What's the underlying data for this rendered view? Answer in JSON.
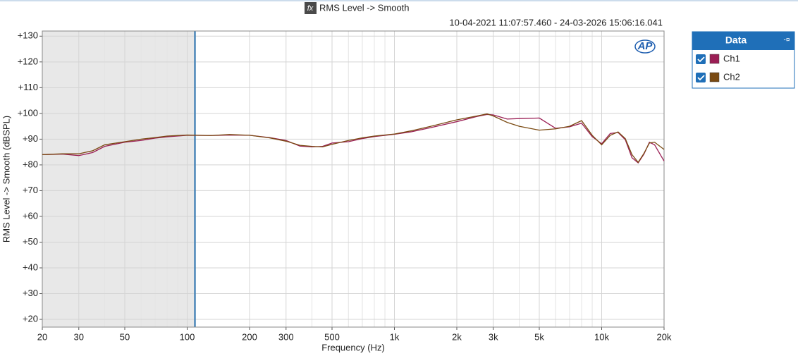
{
  "chart_data": {
    "type": "line",
    "title": "RMS Level -> Smooth",
    "subtitle": "10-04-2021 11:07:57.460 - 24-03-2026 15:06:16.041",
    "xlabel": "Frequency (Hz)",
    "ylabel": "RMS Level -> Smooth (dBSPL)",
    "logo": "AP",
    "legend_title": "Data",
    "xscale": "log",
    "grid": true,
    "xlim": [
      20,
      20000
    ],
    "ylim": [
      17,
      132
    ],
    "xticks": [
      20,
      30,
      50,
      100,
      200,
      300,
      500,
      {
        "value": 1000,
        "label": "1k"
      },
      {
        "value": 2000,
        "label": "2k"
      },
      {
        "value": 3000,
        "label": "3k"
      },
      {
        "value": 5000,
        "label": "5k"
      },
      {
        "value": 10000,
        "label": "10k"
      },
      {
        "value": 20000,
        "label": "20k"
      }
    ],
    "xminor_ticks": [
      40,
      60,
      70,
      80,
      90,
      400,
      600,
      700,
      800,
      900,
      4000,
      6000,
      7000,
      8000,
      9000
    ],
    "yticks": [
      {
        "value": 20,
        "label": "+20"
      },
      {
        "value": 30,
        "label": "+30"
      },
      {
        "value": 40,
        "label": "+40"
      },
      {
        "value": 50,
        "label": "+50"
      },
      {
        "value": 60,
        "label": "+60"
      },
      {
        "value": 70,
        "label": "+70"
      },
      {
        "value": 80,
        "label": "+80"
      },
      {
        "value": 90,
        "label": "+90"
      },
      {
        "value": 100,
        "label": "+100"
      },
      {
        "value": 110,
        "label": "+110"
      },
      {
        "value": 120,
        "label": "+120"
      },
      {
        "value": 130,
        "label": "+130"
      }
    ],
    "shaded_to": 109,
    "x": [
      20,
      25,
      30,
      35,
      40,
      50,
      60,
      70,
      80,
      100,
      130,
      160,
      200,
      250,
      300,
      350,
      400,
      450,
      500,
      600,
      700,
      800,
      1000,
      1200,
      1500,
      2000,
      2500,
      2800,
      3000,
      3500,
      4000,
      5000,
      6000,
      7000,
      8000,
      9000,
      10000,
      11000,
      12000,
      13000,
      14000,
      15000,
      16000,
      17000,
      18000,
      20000
    ],
    "series": [
      {
        "name": "Ch1",
        "color": "#9b1f55",
        "values": [
          84,
          84.2,
          83.6,
          84.8,
          87.2,
          88.8,
          89.5,
          90.4,
          90.9,
          91.5,
          91.4,
          91.6,
          91.5,
          90.6,
          89.5,
          87.3,
          87,
          87.2,
          88.5,
          89,
          90.2,
          91,
          91.9,
          92.8,
          94.5,
          96.8,
          98.8,
          99.6,
          99.4,
          97.8,
          98,
          98.2,
          94.2,
          94.8,
          96.2,
          91,
          88.2,
          92.2,
          92.6,
          89.8,
          82.8,
          80.8,
          84.2,
          88.8,
          87.8,
          81.5
        ]
      },
      {
        "name": "Ch2",
        "color": "#7a4a12",
        "values": [
          84,
          84.3,
          84.3,
          85.5,
          87.8,
          89,
          90,
          90.6,
          91.2,
          91.6,
          91.4,
          91.8,
          91.5,
          90.5,
          89.2,
          87.6,
          87.2,
          87,
          88,
          89.5,
          90.5,
          91.2,
          92,
          93.2,
          95,
          97.5,
          99,
          99.8,
          99,
          96.5,
          95,
          93.5,
          94,
          95,
          97.2,
          91.5,
          87.8,
          91.5,
          92.8,
          90.2,
          84,
          81,
          84.5,
          88.5,
          88.8,
          86
        ]
      }
    ]
  }
}
